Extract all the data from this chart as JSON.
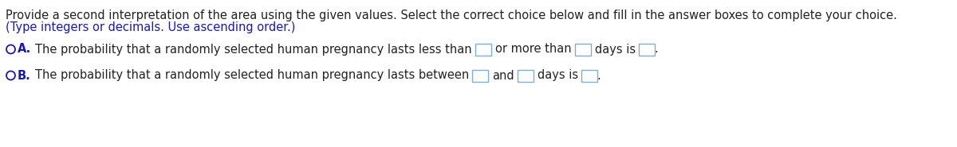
{
  "title_line1": "Provide a second interpretation of the area using the given values. Select the correct choice below and fill in the answer boxes to complete your choice.",
  "title_line2": "(Type integers or decimals. Use ascending order.)",
  "option_a_label": "A.",
  "option_a_text_before": "The probability that a randomly selected human pregnancy lasts less than",
  "option_a_text_mid": "or more than",
  "option_a_text_after": "days is",
  "option_b_label": "B.",
  "option_b_text_before": "The probability that a randomly selected human pregnancy lasts between",
  "option_b_text_mid": "and",
  "option_b_text_after": "days is",
  "background_color": "#ffffff",
  "text_color_black": "#222222",
  "text_color_blue": "#1a1aaa",
  "box_edge_color": "#7ab0d4",
  "font_size": 10.5,
  "fig_width": 12.0,
  "fig_height": 1.85,
  "dpi": 100
}
